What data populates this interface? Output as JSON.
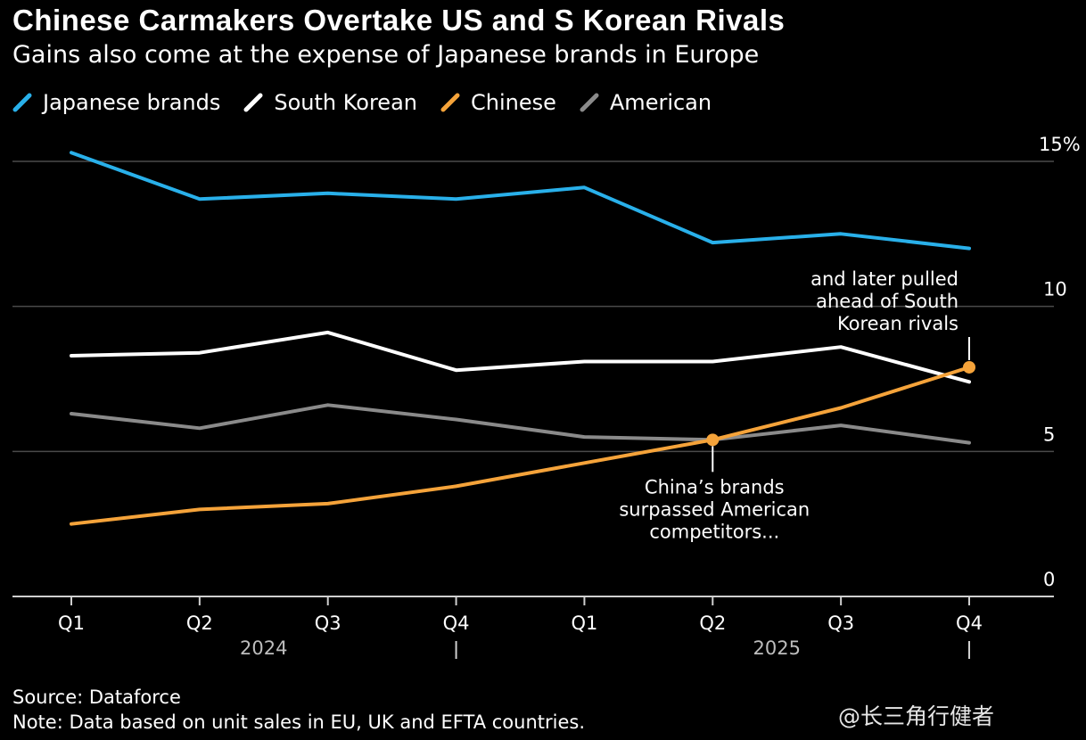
{
  "chart_data": {
    "type": "line",
    "title": "Chinese Carmakers Overtake US and S Korean Rivals",
    "subtitle": "Gains also come at the expense of Japanese brands in Europe",
    "categories": [
      "Q1",
      "Q2",
      "Q3",
      "Q4",
      "Q1",
      "Q2",
      "Q3",
      "Q4"
    ],
    "year_labels": [
      "2024",
      "2025"
    ],
    "xlabel": "",
    "ylabel": "",
    "ylim": [
      0,
      15
    ],
    "yticks": [
      {
        "value": 15,
        "label": "15%"
      },
      {
        "value": 10,
        "label": "10"
      },
      {
        "value": 5,
        "label": "5"
      },
      {
        "value": 0,
        "label": "0"
      }
    ],
    "grid": true,
    "legend_position": "top-left",
    "series": [
      {
        "name": "Japanese brands",
        "color": "#29b0ea",
        "values": [
          15.3,
          13.7,
          13.9,
          13.7,
          14.1,
          12.2,
          12.5,
          12.0
        ]
      },
      {
        "name": "South Korean",
        "color": "#ffffff",
        "values": [
          8.3,
          8.4,
          9.1,
          7.8,
          8.1,
          8.1,
          8.6,
          7.4
        ]
      },
      {
        "name": "Chinese",
        "color": "#f5a33a",
        "values": [
          2.5,
          3.0,
          3.2,
          3.8,
          4.6,
          5.4,
          6.5,
          7.9
        ]
      },
      {
        "name": "American",
        "color": "#8a8a8a",
        "values": [
          6.3,
          5.8,
          6.6,
          6.1,
          5.5,
          5.4,
          5.9,
          5.3
        ]
      }
    ],
    "annotations": [
      {
        "series": "Chinese",
        "index": 5,
        "label_position": "below",
        "lines": [
          "China’s brands",
          "surpassed American",
          "competitors..."
        ]
      },
      {
        "series": "Chinese",
        "index": 7,
        "label_position": "above",
        "lines": [
          "and later pulled",
          "ahead of South",
          "Korean rivals"
        ]
      }
    ]
  },
  "footer": {
    "source": "Source: Dataforce",
    "note": "Note: Data based on unit sales in EU, UK and EFTA countries."
  },
  "watermark": "@长三角行健者",
  "colors": {
    "background": "#000000",
    "gridline": "#4a4a4a",
    "axis": "#cfcfcf",
    "text": "#ffffff",
    "muted_text": "#bdbdbd"
  }
}
